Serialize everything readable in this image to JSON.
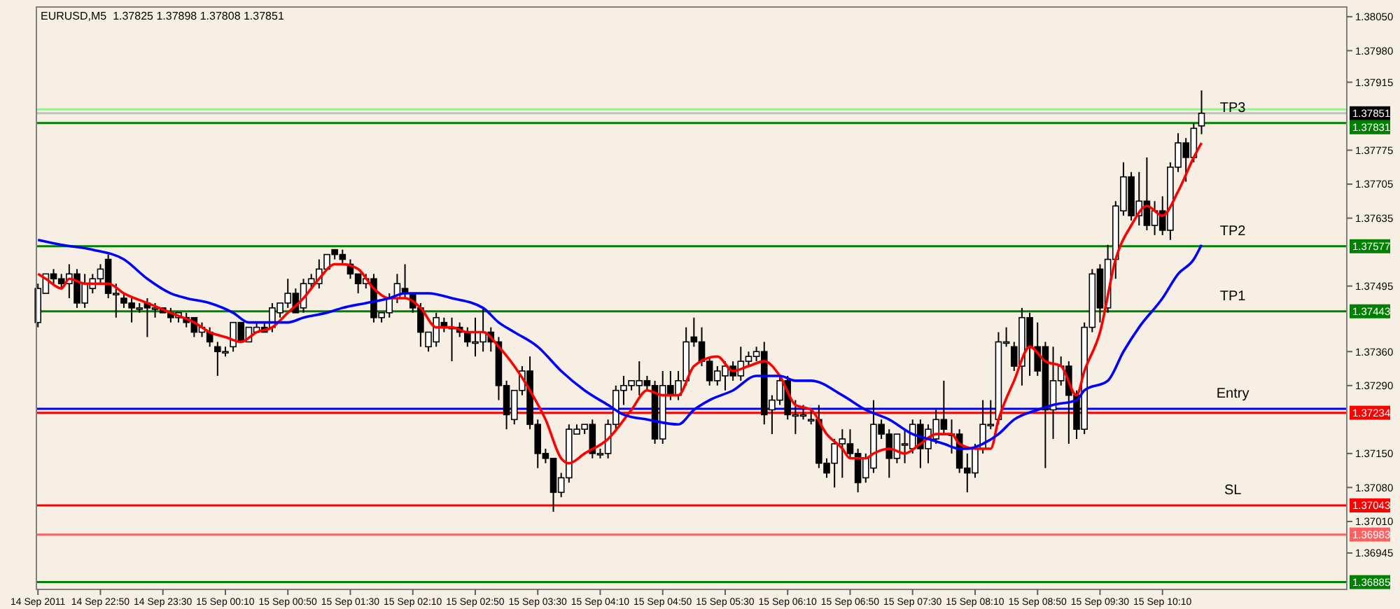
{
  "chart_data": {
    "type": "candlestick",
    "title": "EURUSD,M5  1.37825 1.37898 1.37808 1.37851",
    "x": [
      "2011-09-14T22:10",
      "2011-09-14T22:15",
      "2011-09-14T22:20",
      "2011-09-14T22:25",
      "2011-09-14T22:30",
      "2011-09-14T22:35",
      "2011-09-14T22:40",
      "2011-09-14T22:45",
      "2011-09-14T22:50",
      "2011-09-14T22:55",
      "2011-09-14T23:00",
      "2011-09-14T23:05",
      "2011-09-14T23:10",
      "2011-09-14T23:15",
      "2011-09-14T23:20",
      "2011-09-14T23:25",
      "2011-09-14T23:30",
      "2011-09-14T23:35",
      "2011-09-14T23:40",
      "2011-09-14T23:45",
      "2011-09-14T23:50",
      "2011-09-14T23:55",
      "2011-09-15T00:00",
      "2011-09-15T00:05",
      "2011-09-15T00:10",
      "2011-09-15T00:15",
      "2011-09-15T00:20",
      "2011-09-15T00:25",
      "2011-09-15T00:30",
      "2011-09-15T00:35",
      "2011-09-15T00:40",
      "2011-09-15T00:45",
      "2011-09-15T00:50",
      "2011-09-15T00:55",
      "2011-09-15T01:00",
      "2011-09-15T01:05",
      "2011-09-15T01:10",
      "2011-09-15T01:15",
      "2011-09-15T01:20",
      "2011-09-15T01:25",
      "2011-09-15T01:30",
      "2011-09-15T01:35",
      "2011-09-15T01:40",
      "2011-09-15T01:45",
      "2011-09-15T01:50",
      "2011-09-15T01:55",
      "2011-09-15T02:00",
      "2011-09-15T02:05",
      "2011-09-15T02:10",
      "2011-09-15T02:15",
      "2011-09-15T02:20",
      "2011-09-15T02:25",
      "2011-09-15T02:30",
      "2011-09-15T02:35",
      "2011-09-15T02:40",
      "2011-09-15T02:45",
      "2011-09-15T02:50",
      "2011-09-15T02:55",
      "2011-09-15T03:00",
      "2011-09-15T03:05",
      "2011-09-15T03:10",
      "2011-09-15T03:15",
      "2011-09-15T03:20",
      "2011-09-15T03:25",
      "2011-09-15T03:30",
      "2011-09-15T03:35",
      "2011-09-15T03:40",
      "2011-09-15T03:45",
      "2011-09-15T03:50",
      "2011-09-15T03:55",
      "2011-09-15T04:00",
      "2011-09-15T04:05",
      "2011-09-15T04:10",
      "2011-09-15T04:15",
      "2011-09-15T04:20",
      "2011-09-15T04:25",
      "2011-09-15T04:30",
      "2011-09-15T04:35",
      "2011-09-15T04:40",
      "2011-09-15T04:45",
      "2011-09-15T04:50",
      "2011-09-15T04:55",
      "2011-09-15T05:00",
      "2011-09-15T05:05",
      "2011-09-15T05:10",
      "2011-09-15T05:15",
      "2011-09-15T05:20",
      "2011-09-15T05:25",
      "2011-09-15T05:30",
      "2011-09-15T05:35",
      "2011-09-15T05:40",
      "2011-09-15T05:45",
      "2011-09-15T05:50",
      "2011-09-15T05:55",
      "2011-09-15T06:00",
      "2011-09-15T06:05",
      "2011-09-15T06:10",
      "2011-09-15T06:15",
      "2011-09-15T06:20",
      "2011-09-15T06:25",
      "2011-09-15T06:30",
      "2011-09-15T06:35",
      "2011-09-15T06:40",
      "2011-09-15T06:45",
      "2011-09-15T06:50",
      "2011-09-15T06:55",
      "2011-09-15T07:00",
      "2011-09-15T07:05",
      "2011-09-15T07:10",
      "2011-09-15T07:15",
      "2011-09-15T07:20",
      "2011-09-15T07:25",
      "2011-09-15T07:30",
      "2011-09-15T07:35",
      "2011-09-15T07:40",
      "2011-09-15T07:45",
      "2011-09-15T07:50",
      "2011-09-15T07:55",
      "2011-09-15T08:00",
      "2011-09-15T08:05",
      "2011-09-15T08:10",
      "2011-09-15T08:15",
      "2011-09-15T08:20",
      "2011-09-15T08:25",
      "2011-09-15T08:30",
      "2011-09-15T08:35",
      "2011-09-15T08:40",
      "2011-09-15T08:45",
      "2011-09-15T08:50",
      "2011-09-15T08:55",
      "2011-09-15T09:00",
      "2011-09-15T09:05",
      "2011-09-15T09:10",
      "2011-09-15T09:15",
      "2011-09-15T09:20",
      "2011-09-15T09:25",
      "2011-09-15T09:30",
      "2011-09-15T09:35",
      "2011-09-15T09:40",
      "2011-09-15T09:45",
      "2011-09-15T09:50",
      "2011-09-15T09:55",
      "2011-09-15T10:00",
      "2011-09-15T10:05",
      "2011-09-15T10:10",
      "2011-09-15T10:15",
      "2011-09-15T10:20",
      "2011-09-15T10:25",
      "2011-09-15T10:30",
      "2011-09-15T10:35"
    ],
    "ohlc": [
      [
        1.3742,
        1.375,
        1.3741,
        1.3749
      ],
      [
        1.3748,
        1.3752,
        1.3748,
        1.3752
      ],
      [
        1.3752,
        1.3753,
        1.375,
        1.3751
      ],
      [
        1.3751,
        1.3752,
        1.3749,
        1.375
      ],
      [
        1.375,
        1.3754,
        1.3747,
        1.3752
      ],
      [
        1.3752,
        1.3753,
        1.3745,
        1.3746
      ],
      [
        1.3746,
        1.3752,
        1.3745,
        1.375
      ],
      [
        1.3749,
        1.3752,
        1.3748,
        1.3751
      ],
      [
        1.3751,
        1.3754,
        1.375,
        1.3753
      ],
      [
        1.3755,
        1.3756,
        1.3747,
        1.3748
      ],
      [
        1.3748,
        1.375,
        1.3743,
        1.3748
      ],
      [
        1.3747,
        1.3748,
        1.3745,
        1.3746
      ],
      [
        1.3746,
        1.3747,
        1.3742,
        1.3745
      ],
      [
        1.3745,
        1.3746,
        1.3744,
        1.3745
      ],
      [
        1.3746,
        1.3747,
        1.3739,
        1.3745
      ],
      [
        1.3745,
        1.3746,
        1.3743,
        1.3745
      ],
      [
        1.3745,
        1.3745,
        1.3744,
        1.3744
      ],
      [
        1.3744,
        1.3745,
        1.3742,
        1.3743
      ],
      [
        1.3743,
        1.3744,
        1.3742,
        1.3744
      ],
      [
        1.3743,
        1.3744,
        1.3741,
        1.3742
      ],
      [
        1.3743,
        1.3743,
        1.3739,
        1.374
      ],
      [
        1.374,
        1.3742,
        1.3739,
        1.3741
      ],
      [
        1.374,
        1.3741,
        1.3737,
        1.3738
      ],
      [
        1.3737,
        1.3738,
        1.3731,
        1.3736
      ],
      [
        1.3736,
        1.3737,
        1.3735,
        1.3736
      ],
      [
        1.3737,
        1.3742,
        1.3736,
        1.3742
      ],
      [
        1.3742,
        1.3742,
        1.3738,
        1.3738
      ],
      [
        1.3738,
        1.3741,
        1.3738,
        1.3741
      ],
      [
        1.374,
        1.3742,
        1.374,
        1.3741
      ],
      [
        1.3741,
        1.3742,
        1.374,
        1.374
      ],
      [
        1.3741,
        1.3746,
        1.374,
        1.3745
      ],
      [
        1.3744,
        1.3746,
        1.3743,
        1.3746
      ],
      [
        1.3746,
        1.3751,
        1.3745,
        1.3748
      ],
      [
        1.3748,
        1.3749,
        1.3744,
        1.3744
      ],
      [
        1.3745,
        1.3751,
        1.3744,
        1.375
      ],
      [
        1.375,
        1.3752,
        1.3749,
        1.3751
      ],
      [
        1.375,
        1.3755,
        1.3749,
        1.3753
      ],
      [
        1.3753,
        1.3756,
        1.3753,
        1.3756
      ],
      [
        1.3757,
        1.3757,
        1.3755,
        1.3756
      ],
      [
        1.3756,
        1.3757,
        1.3754,
        1.3755
      ],
      [
        1.3754,
        1.3755,
        1.3751,
        1.3752
      ],
      [
        1.3752,
        1.3752,
        1.3748,
        1.375
      ],
      [
        1.375,
        1.3752,
        1.3749,
        1.3751
      ],
      [
        1.3751,
        1.3752,
        1.3742,
        1.3743
      ],
      [
        1.3743,
        1.3744,
        1.3742,
        1.3744
      ],
      [
        1.3744,
        1.3748,
        1.3743,
        1.3747
      ],
      [
        1.3747,
        1.3752,
        1.3746,
        1.375
      ],
      [
        1.3749,
        1.3754,
        1.3747,
        1.3748
      ],
      [
        1.3748,
        1.3748,
        1.3744,
        1.3745
      ],
      [
        1.3745,
        1.3746,
        1.3737,
        1.374
      ],
      [
        1.3737,
        1.374,
        1.3736,
        1.374
      ],
      [
        1.3738,
        1.3744,
        1.3737,
        1.3743
      ],
      [
        1.3742,
        1.3743,
        1.374,
        1.3741
      ],
      [
        1.3741,
        1.3743,
        1.3734,
        1.3741
      ],
      [
        1.3741,
        1.3742,
        1.3739,
        1.374
      ],
      [
        1.374,
        1.3741,
        1.3737,
        1.3738
      ],
      [
        1.3738,
        1.3743,
        1.3735,
        1.3738
      ],
      [
        1.3738,
        1.3745,
        1.3736,
        1.374
      ],
      [
        1.374,
        1.3741,
        1.3736,
        1.3738
      ],
      [
        1.3738,
        1.3739,
        1.3726,
        1.3729
      ],
      [
        1.3729,
        1.373,
        1.372,
        1.3723
      ],
      [
        1.3722,
        1.3728,
        1.3721,
        1.3728
      ],
      [
        1.3728,
        1.3733,
        1.3727,
        1.3732
      ],
      [
        1.3732,
        1.3735,
        1.372,
        1.3721
      ],
      [
        1.3721,
        1.3722,
        1.3712,
        1.3715
      ],
      [
        1.3715,
        1.3716,
        1.3713,
        1.3714
      ],
      [
        1.3714,
        1.3714,
        1.3703,
        1.3707
      ],
      [
        1.3707,
        1.3711,
        1.3706,
        1.371
      ],
      [
        1.371,
        1.3721,
        1.3709,
        1.372
      ],
      [
        1.3719,
        1.3721,
        1.3719,
        1.372
      ],
      [
        1.372,
        1.3721,
        1.3719,
        1.3721
      ],
      [
        1.3721,
        1.3722,
        1.3714,
        1.3715
      ],
      [
        1.3715,
        1.3716,
        1.3714,
        1.3715
      ],
      [
        1.3715,
        1.3722,
        1.3714,
        1.3721
      ],
      [
        1.3721,
        1.3729,
        1.372,
        1.3728
      ],
      [
        1.3728,
        1.3731,
        1.3725,
        1.3729
      ],
      [
        1.3729,
        1.373,
        1.3728,
        1.373
      ],
      [
        1.3729,
        1.3734,
        1.3727,
        1.373
      ],
      [
        1.373,
        1.3731,
        1.3728,
        1.3729
      ],
      [
        1.3729,
        1.373,
        1.3717,
        1.3718
      ],
      [
        1.3718,
        1.3732,
        1.3717,
        1.3729
      ],
      [
        1.3729,
        1.3732,
        1.3726,
        1.3727
      ],
      [
        1.3727,
        1.3732,
        1.3726,
        1.373
      ],
      [
        1.373,
        1.3741,
        1.3729,
        1.3738
      ],
      [
        1.3739,
        1.3743,
        1.3737,
        1.3738
      ],
      [
        1.3738,
        1.3741,
        1.3733,
        1.3734
      ],
      [
        1.3734,
        1.3735,
        1.3729,
        1.373
      ],
      [
        1.373,
        1.3733,
        1.3729,
        1.3732
      ],
      [
        1.3731,
        1.3734,
        1.3728,
        1.3733
      ],
      [
        1.3733,
        1.3734,
        1.373,
        1.3731
      ],
      [
        1.3731,
        1.3737,
        1.373,
        1.3734
      ],
      [
        1.3734,
        1.3736,
        1.3733,
        1.3735
      ],
      [
        1.3735,
        1.3737,
        1.3734,
        1.3736
      ],
      [
        1.3736,
        1.3738,
        1.3721,
        1.3723
      ],
      [
        1.3724,
        1.3727,
        1.3719,
        1.3726
      ],
      [
        1.3726,
        1.3731,
        1.3725,
        1.373
      ],
      [
        1.373,
        1.3731,
        1.3722,
        1.3723
      ],
      [
        1.3723,
        1.3726,
        1.3719,
        1.3723
      ],
      [
        1.3723,
        1.3725,
        1.3722,
        1.3723
      ],
      [
        1.3722,
        1.3724,
        1.3721,
        1.3722
      ],
      [
        1.3722,
        1.3725,
        1.3712,
        1.3713
      ],
      [
        1.3713,
        1.3714,
        1.371,
        1.3711
      ],
      [
        1.3713,
        1.3718,
        1.3708,
        1.3717
      ],
      [
        1.3717,
        1.372,
        1.371,
        1.3718
      ],
      [
        1.3717,
        1.372,
        1.3714,
        1.3715
      ],
      [
        1.3715,
        1.3716,
        1.3707,
        1.3709
      ],
      [
        1.371,
        1.3715,
        1.3709,
        1.3714
      ],
      [
        1.3712,
        1.3726,
        1.3711,
        1.3721
      ],
      [
        1.3721,
        1.3722,
        1.3718,
        1.3719
      ],
      [
        1.3719,
        1.372,
        1.371,
        1.3714
      ],
      [
        1.3714,
        1.3719,
        1.3713,
        1.3719
      ],
      [
        1.3717,
        1.372,
        1.3713,
        1.3717
      ],
      [
        1.3716,
        1.3722,
        1.3715,
        1.3721
      ],
      [
        1.3721,
        1.3722,
        1.3712,
        1.3716
      ],
      [
        1.3716,
        1.3721,
        1.3713,
        1.372
      ],
      [
        1.3718,
        1.3724,
        1.3717,
        1.3722
      ],
      [
        1.3722,
        1.373,
        1.3719,
        1.372
      ],
      [
        1.3719,
        1.3722,
        1.3715,
        1.3719
      ],
      [
        1.3719,
        1.372,
        1.3711,
        1.3712
      ],
      [
        1.3712,
        1.3715,
        1.3707,
        1.3711
      ],
      [
        1.3711,
        1.3717,
        1.371,
        1.3716
      ],
      [
        1.3716,
        1.3726,
        1.3715,
        1.3721
      ],
      [
        1.3721,
        1.3726,
        1.372,
        1.3721
      ],
      [
        1.3722,
        1.374,
        1.3721,
        1.3738
      ],
      [
        1.3738,
        1.3741,
        1.3737,
        1.3738
      ],
      [
        1.3737,
        1.3738,
        1.3732,
        1.3733
      ],
      [
        1.3733,
        1.3745,
        1.3729,
        1.3743
      ],
      [
        1.3743,
        1.3744,
        1.3731,
        1.3737
      ],
      [
        1.3737,
        1.3742,
        1.3731,
        1.3732
      ],
      [
        1.3737,
        1.3738,
        1.3712,
        1.3724
      ],
      [
        1.3724,
        1.3737,
        1.3718,
        1.373
      ],
      [
        1.373,
        1.3735,
        1.3729,
        1.3733
      ],
      [
        1.3733,
        1.3734,
        1.3717,
        1.3727
      ],
      [
        1.3727,
        1.3728,
        1.3718,
        1.372
      ],
      [
        1.372,
        1.3742,
        1.3719,
        1.3741
      ],
      [
        1.3741,
        1.3753,
        1.374,
        1.3752
      ],
      [
        1.3753,
        1.3754,
        1.3742,
        1.3745
      ],
      [
        1.3745,
        1.3758,
        1.3744,
        1.3755
      ],
      [
        1.3755,
        1.3767,
        1.3751,
        1.3766
      ],
      [
        1.3765,
        1.3775,
        1.3764,
        1.3772
      ],
      [
        1.3772,
        1.3773,
        1.3763,
        1.3764
      ],
      [
        1.3764,
        1.3773,
        1.3762,
        1.3767
      ],
      [
        1.3767,
        1.3776,
        1.3761,
        1.3762
      ],
      [
        1.3762,
        1.3767,
        1.376,
        1.3765
      ],
      [
        1.3765,
        1.3768,
        1.376,
        1.3761
      ],
      [
        1.3761,
        1.3775,
        1.3759,
        1.3774
      ],
      [
        1.3774,
        1.3781,
        1.3773,
        1.3779
      ],
      [
        1.3779,
        1.378,
        1.3771,
        1.3776
      ],
      [
        1.3776,
        1.3783,
        1.3775,
        1.3782
      ],
      [
        1.37825,
        1.37898,
        1.37808,
        1.37851
      ]
    ],
    "series": [
      {
        "type": "line",
        "color": "#ff0000",
        "x": [
          "2011-09-14T22:10",
          "2011-09-14T22:15",
          "2011-09-14T22:25",
          "2011-09-14T22:30",
          "2011-09-14T22:40",
          "2011-09-14T22:55",
          "2011-09-14T23:05",
          "2011-09-14T23:20",
          "2011-09-14T23:35",
          "2011-09-14T23:50",
          "2011-09-15T00:00",
          "2011-09-15T00:10",
          "2011-09-15T00:20",
          "2011-09-15T00:30",
          "2011-09-15T00:40",
          "2011-09-15T00:50",
          "2011-09-15T01:00",
          "2011-09-15T01:10",
          "2011-09-15T01:20",
          "2011-09-15T01:25",
          "2011-09-15T01:35",
          "2011-09-15T01:45",
          "2011-09-15T01:55",
          "2011-09-15T02:05",
          "2011-09-15T02:15",
          "2011-09-15T02:25",
          "2011-09-15T02:35",
          "2011-09-15T02:45",
          "2011-09-15T02:55",
          "2011-09-15T03:05",
          "2011-09-15T03:15",
          "2011-09-15T03:25",
          "2011-09-15T03:35",
          "2011-09-15T03:45",
          "2011-09-15T03:50",
          "2011-09-15T04:00",
          "2011-09-15T04:15",
          "2011-09-15T04:30",
          "2011-09-15T04:40",
          "2011-09-15T04:50",
          "2011-09-15T05:00",
          "2011-09-15T05:10",
          "2011-09-15T05:25",
          "2011-09-15T05:35",
          "2011-09-15T05:45",
          "2011-09-15T05:55",
          "2011-09-15T06:05",
          "2011-09-15T06:15",
          "2011-09-15T06:25",
          "2011-09-15T06:35",
          "2011-09-15T06:45",
          "2011-09-15T06:50",
          "2011-09-15T07:00",
          "2011-09-15T07:05",
          "2011-09-15T07:15",
          "2011-09-15T07:25",
          "2011-09-15T07:35",
          "2011-09-15T07:45",
          "2011-09-15T07:55",
          "2011-09-15T08:00",
          "2011-09-15T08:10",
          "2011-09-15T08:20",
          "2011-09-15T08:25",
          "2011-09-15T08:35",
          "2011-09-15T08:45",
          "2011-09-15T08:55",
          "2011-09-15T09:05",
          "2011-09-15T09:15",
          "2011-09-15T09:20",
          "2011-09-15T09:30",
          "2011-09-15T09:40",
          "2011-09-15T09:50",
          "2011-09-15T10:00",
          "2011-09-15T10:10",
          "2011-09-15T10:20",
          "2011-09-15T10:30",
          "2011-09-15T10:35"
        ],
        "values": [
          1.3752,
          1.3751,
          1.3749,
          1.3751,
          1.375,
          1.375,
          1.3748,
          1.3746,
          1.3744,
          1.3742,
          1.374,
          1.3739,
          1.3738,
          1.374,
          1.3741,
          1.3744,
          1.3747,
          1.3751,
          1.3754,
          1.3754,
          1.3753,
          1.3749,
          1.3747,
          1.3747,
          1.3745,
          1.3741,
          1.3741,
          1.374,
          1.374,
          1.3737,
          1.3733,
          1.3728,
          1.3722,
          1.3714,
          1.3713,
          1.3715,
          1.3718,
          1.3724,
          1.3728,
          1.3727,
          1.3727,
          1.3733,
          1.3735,
          1.3732,
          1.3733,
          1.3734,
          1.3731,
          1.3725,
          1.3724,
          1.3719,
          1.3716,
          1.3714,
          1.3714,
          1.3715,
          1.3716,
          1.3715,
          1.3717,
          1.3719,
          1.3719,
          1.3717,
          1.3716,
          1.3716,
          1.3722,
          1.373,
          1.3737,
          1.3734,
          1.3733,
          1.3727,
          1.3732,
          1.374,
          1.3755,
          1.3762,
          1.3766,
          1.3764,
          1.3769,
          1.3776,
          1.3779
        ]
      },
      {
        "type": "line",
        "color": "#0000ff",
        "x": [
          "2011-09-14T22:10",
          "2011-09-14T22:25",
          "2011-09-14T22:45",
          "2011-09-14T23:05",
          "2011-09-14T23:20",
          "2011-09-14T23:35",
          "2011-09-14T23:45",
          "2011-09-15T00:00",
          "2011-09-15T00:15",
          "2011-09-15T00:25",
          "2011-09-15T00:40",
          "2011-09-15T00:50",
          "2011-09-15T01:00",
          "2011-09-15T01:15",
          "2011-09-15T01:25",
          "2011-09-15T01:40",
          "2011-09-15T01:55",
          "2011-09-15T02:05",
          "2011-09-15T02:20",
          "2011-09-15T02:35",
          "2011-09-15T02:55",
          "2011-09-15T03:05",
          "2011-09-15T03:15",
          "2011-09-15T03:30",
          "2011-09-15T03:45",
          "2011-09-15T04:00",
          "2011-09-15T04:15",
          "2011-09-15T04:25",
          "2011-09-15T04:40",
          "2011-09-15T05:00",
          "2011-09-15T05:10",
          "2011-09-15T05:20",
          "2011-09-15T05:35",
          "2011-09-15T05:50",
          "2011-09-15T06:05",
          "2011-09-15T06:15",
          "2011-09-15T06:25",
          "2011-09-15T06:45",
          "2011-09-15T07:00",
          "2011-09-15T07:15",
          "2011-09-15T07:30",
          "2011-09-15T07:40",
          "2011-09-15T07:50",
          "2011-09-15T08:00",
          "2011-09-15T08:05",
          "2011-09-15T08:15",
          "2011-09-15T08:25",
          "2011-09-15T08:35",
          "2011-09-15T08:50",
          "2011-09-15T09:00",
          "2011-09-15T09:15",
          "2011-09-15T09:20",
          "2011-09-15T09:35",
          "2011-09-15T09:45",
          "2011-09-15T09:55",
          "2011-09-15T10:10",
          "2011-09-15T10:20",
          "2011-09-15T10:30",
          "2011-09-15T10:35"
        ],
        "values": [
          1.3759,
          1.3758,
          1.3757,
          1.3755,
          1.3751,
          1.3748,
          1.3747,
          1.3746,
          1.3744,
          1.3742,
          1.3742,
          1.3742,
          1.3743,
          1.3744,
          1.3745,
          1.3746,
          1.3747,
          1.3748,
          1.3748,
          1.3747,
          1.3745,
          1.3742,
          1.374,
          1.3737,
          1.3732,
          1.3728,
          1.3725,
          1.3723,
          1.3722,
          1.3721,
          1.3724,
          1.3726,
          1.3728,
          1.3731,
          1.3731,
          1.373,
          1.373,
          1.3727,
          1.3724,
          1.3722,
          1.3719,
          1.3718,
          1.3717,
          1.3716,
          1.3716,
          1.3717,
          1.3719,
          1.3722,
          1.3724,
          1.3725,
          1.3726,
          1.3728,
          1.373,
          1.3736,
          1.3741,
          1.3747,
          1.3752,
          1.3755,
          1.3758
        ]
      }
    ],
    "xlim": [
      "2011-09-14T22:09",
      "2011-09-15T12:08"
    ],
    "xticks": [
      {
        "value": "2011-09-14T22:10",
        "label": "14 Sep 2011"
      },
      {
        "value": "2011-09-14T22:50",
        "label": "14 Sep 22:50"
      },
      {
        "value": "2011-09-14T23:30",
        "label": "14 Sep 23:30"
      },
      {
        "value": "2011-09-15T00:10",
        "label": "15 Sep 00:10"
      },
      {
        "value": "2011-09-15T00:50",
        "label": "15 Sep 00:50"
      },
      {
        "value": "2011-09-15T01:30",
        "label": "15 Sep 01:30"
      },
      {
        "value": "2011-09-15T02:10",
        "label": "15 Sep 02:10"
      },
      {
        "value": "2011-09-15T02:50",
        "label": "15 Sep 02:50"
      },
      {
        "value": "2011-09-15T03:30",
        "label": "15 Sep 03:30"
      },
      {
        "value": "2011-09-15T04:10",
        "label": "15 Sep 04:10"
      },
      {
        "value": "2011-09-15T04:50",
        "label": "15 Sep 04:50"
      },
      {
        "value": "2011-09-15T05:30",
        "label": "15 Sep 05:30"
      },
      {
        "value": "2011-09-15T06:10",
        "label": "15 Sep 06:10"
      },
      {
        "value": "2011-09-15T06:50",
        "label": "15 Sep 06:50"
      },
      {
        "value": "2011-09-15T07:30",
        "label": "15 Sep 07:30"
      },
      {
        "value": "2011-09-15T08:10",
        "label": "15 Sep 08:10"
      },
      {
        "value": "2011-09-15T08:50",
        "label": "15 Sep 08:50"
      },
      {
        "value": "2011-09-15T09:30",
        "label": "15 Sep 09:30"
      },
      {
        "value": "2011-09-15T10:10",
        "label": "15 Sep 10:10"
      }
    ],
    "ylim": [
      1.3687,
      1.3807
    ],
    "yticks": [
      {
        "value": 1.3805,
        "label": "1.38050"
      },
      {
        "value": 1.3798,
        "label": "1.37980"
      },
      {
        "value": 1.37915,
        "label": "1.37915"
      },
      {
        "value": 1.37775,
        "label": "1.37775"
      },
      {
        "value": 1.37705,
        "label": "1.37705"
      },
      {
        "value": 1.37635,
        "label": "1.37635"
      },
      {
        "value": 1.37495,
        "label": "1.37495"
      },
      {
        "value": 1.3736,
        "label": "1.37360"
      },
      {
        "value": 1.3729,
        "label": "1.37290"
      },
      {
        "value": 1.3715,
        "label": "1.37150"
      },
      {
        "value": 1.3708,
        "label": "1.37080"
      },
      {
        "value": 1.3701,
        "label": "1.37010"
      },
      {
        "value": 1.36945,
        "label": "1.36945"
      }
    ],
    "ref_lines": [
      {
        "axis": "y",
        "value": 1.37859,
        "label": null,
        "color": "#80ff80"
      },
      {
        "axis": "y",
        "value": 1.37851,
        "label": "1.37851",
        "color": "#c0c0c0"
      },
      {
        "axis": "y",
        "value": 1.37831,
        "label": "1.37831",
        "color": "#008000"
      },
      {
        "axis": "y",
        "value": 1.37577,
        "label": "1.37577",
        "color": "#008000"
      },
      {
        "axis": "y",
        "value": 1.37443,
        "label": "1.37443",
        "color": "#008000"
      },
      {
        "axis": "y",
        "value": 1.37242,
        "label": null,
        "color": "#0000ff"
      },
      {
        "axis": "y",
        "value": 1.37234,
        "label": "1.37234",
        "color": "#ff0000"
      },
      {
        "axis": "y",
        "value": 1.37043,
        "label": "1.37043",
        "color": "#ff0000"
      },
      {
        "axis": "y",
        "value": 1.36983,
        "label": "1.36983",
        "color": "#ff6060"
      },
      {
        "axis": "y",
        "value": 1.36885,
        "label": "1.36885",
        "color": "#008000"
      }
    ],
    "annotations": [
      {
        "text": "TP3",
        "x": "2011-09-15T10:55",
        "y": 1.37831
      },
      {
        "text": "TP2",
        "x": "2011-09-15T10:55",
        "y": 1.37577
      },
      {
        "text": "TP1",
        "x": "2011-09-15T10:55",
        "y": 1.37443
      },
      {
        "text": "Entry",
        "x": "2011-09-15T10:55",
        "y": 1.37242
      },
      {
        "text": "SL",
        "x": "2011-09-15T10:55",
        "y": 1.37043
      }
    ],
    "grid": false
  }
}
